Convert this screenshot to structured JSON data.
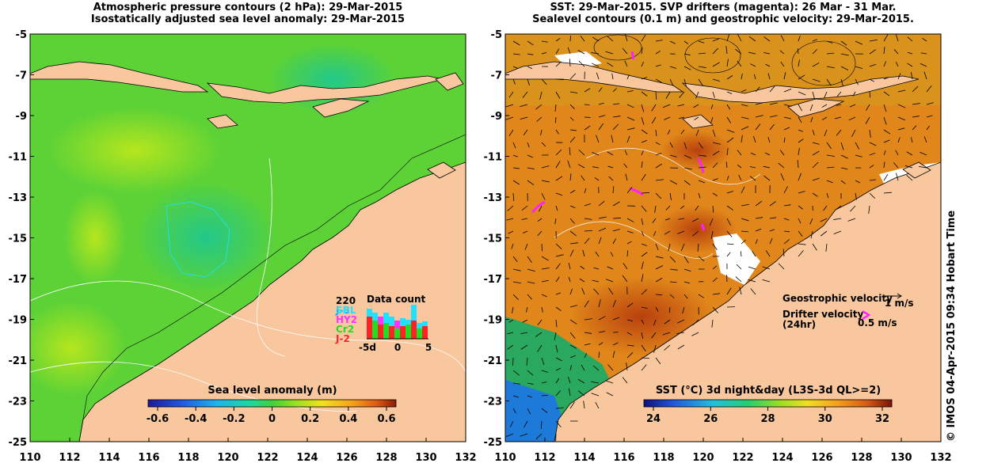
{
  "left_panel": {
    "title_line1": "Atmospheric pressure contours (2 hPa): 29-Mar-2015",
    "title_line2": "Isostatically adjusted sea level anomaly: 29-Mar-2015",
    "colorbar_label": "Sea level anomaly (m)",
    "colorbar_ticks": [
      "-0.6",
      "-0.4",
      "-0.2",
      "0",
      "0.2",
      "0.4",
      "0.6"
    ],
    "inset": {
      "title": "Data count",
      "max_label": "220",
      "series": [
        {
          "name": "J-3",
          "color": "#1f9bff"
        },
        {
          "name": "SRL",
          "color": "#22e0ff"
        },
        {
          "name": "HY2",
          "color": "#ff33ff"
        },
        {
          "name": "Cr2",
          "color": "#22dd22"
        },
        {
          "name": "J-2",
          "color": "#ff2222"
        }
      ],
      "x_ticks": [
        "-5",
        "0",
        "5"
      ],
      "x_tick_first_overlap": "-5d"
    }
  },
  "right_panel": {
    "title_line1": "SST: 29-Mar-2015. SVP drifters (magenta): 26 Mar - 31 Mar.",
    "title_line2": "Sealevel contours (0.1 m) and geostrophic velocity: 29-Mar-2015.",
    "colorbar_label": "SST (°C) 3d night&day (L3S-3d QL>=2)",
    "colorbar_ticks": [
      "24",
      "26",
      "28",
      "30",
      "32"
    ],
    "legend": {
      "geostrophic_label": "Geostrophic velocity",
      "geostrophic_scale": "1 m/s",
      "drifter_label": "Drifter velocity",
      "drifter_sub": "(24hr)",
      "drifter_scale": "0.5 m/s"
    }
  },
  "axes": {
    "y_ticks": [
      "-5",
      "-7",
      "-9",
      "-11",
      "-13",
      "-15",
      "-17",
      "-19",
      "-21",
      "-23",
      "-25"
    ],
    "x_ticks": [
      "110",
      "112",
      "114",
      "116",
      "118",
      "120",
      "122",
      "124",
      "126",
      "128",
      "130",
      "132"
    ],
    "lon_range": [
      110,
      132
    ],
    "lat_range": [
      -25,
      -5
    ]
  },
  "credit": "© IMOS 04-Apr-2015 09:34 Hobart Time",
  "colors": {
    "land": "#f8c79e",
    "sla_green": "#5fd63a",
    "sst_orange": "#e0851a",
    "drifter": "#ff22ff"
  }
}
